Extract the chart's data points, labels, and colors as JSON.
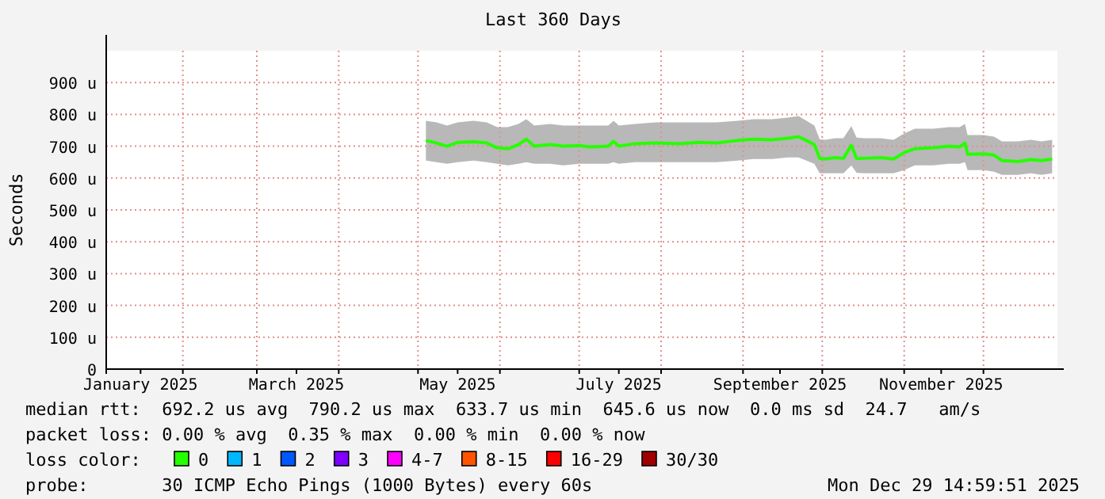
{
  "chart_data": {
    "type": "line",
    "title": "Last 360 Days",
    "ylabel": "Seconds",
    "x": [
      "2025-05-04",
      "2025-05-08",
      "2025-05-12",
      "2025-05-16",
      "2025-05-22",
      "2025-05-27",
      "2025-05-31",
      "2025-06-04",
      "2025-06-08",
      "2025-06-11",
      "2025-06-14",
      "2025-06-20",
      "2025-06-25",
      "2025-07-01",
      "2025-07-05",
      "2025-07-12",
      "2025-07-14",
      "2025-07-16",
      "2025-07-22",
      "2025-07-30",
      "2025-08-08",
      "2025-08-15",
      "2025-08-22",
      "2025-08-30",
      "2025-09-05",
      "2025-09-12",
      "2025-09-18",
      "2025-09-22",
      "2025-09-25",
      "2025-09-28",
      "2025-09-30",
      "2025-10-02",
      "2025-10-06",
      "2025-10-09",
      "2025-10-12",
      "2025-10-14",
      "2025-10-17",
      "2025-10-23",
      "2025-10-28",
      "2025-11-01",
      "2025-11-05",
      "2025-11-12",
      "2025-11-18",
      "2025-11-22",
      "2025-11-24",
      "2025-11-25",
      "2025-12-01",
      "2025-12-05",
      "2025-12-08",
      "2025-12-14",
      "2025-12-19",
      "2025-12-23",
      "2025-12-27"
    ],
    "series": [
      {
        "name": "0",
        "color": "#26ff00",
        "values": [
          718,
          710,
          700,
          712,
          714,
          710,
          695,
          692,
          705,
          722,
          700,
          705,
          700,
          702,
          698,
          700,
          715,
          700,
          708,
          710,
          708,
          712,
          710,
          718,
          722,
          720,
          725,
          730,
          718,
          705,
          662,
          660,
          664,
          662,
          703,
          662,
          662,
          664,
          660,
          680,
          692,
          695,
          700,
          698,
          710,
          675,
          676,
          672,
          655,
          652,
          658,
          655,
          660
        ],
        "lower": [
          655,
          650,
          645,
          650,
          655,
          650,
          645,
          640,
          645,
          650,
          645,
          645,
          640,
          645,
          645,
          645,
          650,
          645,
          650,
          650,
          650,
          650,
          650,
          655,
          660,
          660,
          665,
          665,
          655,
          645,
          615,
          615,
          615,
          615,
          640,
          616,
          615,
          615,
          615,
          625,
          640,
          640,
          645,
          645,
          650,
          625,
          625,
          620,
          610,
          610,
          615,
          610,
          615
        ],
        "upper": [
          780,
          775,
          765,
          775,
          780,
          775,
          760,
          760,
          770,
          785,
          765,
          770,
          765,
          765,
          765,
          765,
          780,
          765,
          770,
          775,
          775,
          775,
          775,
          780,
          785,
          785,
          790,
          795,
          780,
          765,
          722,
          720,
          725,
          725,
          763,
          727,
          725,
          725,
          720,
          740,
          755,
          755,
          760,
          760,
          770,
          735,
          735,
          730,
          715,
          715,
          720,
          715,
          720
        ]
      },
      {
        "name": "1",
        "color": "#00b8ff",
        "values": [
          null,
          null,
          null,
          null,
          null,
          null,
          null,
          null,
          null,
          null,
          null,
          null,
          null,
          null,
          null,
          null,
          null,
          null,
          null,
          null,
          null,
          null,
          null,
          null,
          null,
          null,
          null,
          null,
          null,
          null,
          null,
          null,
          null,
          null,
          null,
          null,
          null,
          null,
          null,
          null,
          null,
          null,
          null,
          null,
          null,
          null,
          null,
          null,
          null,
          null,
          null,
          null,
          null
        ]
      },
      {
        "name": "2",
        "color": "#0059ff",
        "values": [
          null,
          null,
          null,
          null,
          null,
          null,
          null,
          null,
          null,
          null,
          null,
          null,
          null,
          null,
          null,
          null,
          null,
          null,
          null,
          null,
          null,
          null,
          null,
          null,
          null,
          null,
          null,
          null,
          null,
          null,
          null,
          null,
          null,
          null,
          null,
          null,
          null,
          null,
          null,
          null,
          null,
          null,
          null,
          null,
          null,
          null,
          null,
          null,
          null,
          null,
          null,
          null,
          null
        ]
      },
      {
        "name": "3",
        "color": "#7e00ff",
        "values": [
          null,
          null,
          null,
          null,
          null,
          null,
          null,
          null,
          null,
          null,
          null,
          null,
          null,
          null,
          null,
          null,
          null,
          null,
          null,
          null,
          null,
          null,
          null,
          null,
          null,
          null,
          null,
          null,
          null,
          null,
          null,
          null,
          null,
          null,
          null,
          null,
          null,
          null,
          null,
          null,
          null,
          null,
          null,
          null,
          null,
          null,
          null,
          null,
          null,
          null,
          null,
          null,
          null
        ]
      },
      {
        "name": "4-7",
        "color": "#ff00ff",
        "values": [
          null,
          null,
          null,
          null,
          null,
          null,
          null,
          null,
          null,
          null,
          null,
          null,
          null,
          null,
          null,
          null,
          null,
          null,
          null,
          null,
          null,
          null,
          null,
          null,
          null,
          null,
          null,
          null,
          null,
          null,
          null,
          null,
          null,
          null,
          null,
          null,
          null,
          null,
          null,
          null,
          null,
          null,
          null,
          null,
          null,
          null,
          null,
          null,
          null,
          null,
          null,
          null,
          null
        ]
      },
      {
        "name": "8-15",
        "color": "#ff5500",
        "values": [
          null,
          null,
          null,
          null,
          null,
          null,
          null,
          null,
          null,
          null,
          null,
          null,
          null,
          null,
          null,
          null,
          null,
          null,
          null,
          null,
          null,
          null,
          null,
          null,
          null,
          null,
          null,
          null,
          null,
          null,
          null,
          null,
          null,
          null,
          null,
          null,
          null,
          null,
          null,
          null,
          null,
          null,
          null,
          null,
          null,
          null,
          null,
          null,
          null,
          null,
          null,
          null,
          null
        ]
      },
      {
        "name": "16-29",
        "color": "#ff0000",
        "values": [
          null,
          null,
          null,
          null,
          null,
          null,
          null,
          null,
          null,
          null,
          null,
          null,
          null,
          null,
          null,
          null,
          null,
          null,
          null,
          null,
          null,
          null,
          null,
          null,
          null,
          null,
          null,
          null,
          null,
          null,
          null,
          null,
          null,
          null,
          null,
          null,
          null,
          null,
          null,
          null,
          null,
          null,
          null,
          null,
          null,
          null,
          null,
          null,
          null,
          null,
          null,
          null,
          null
        ]
      },
      {
        "name": "30/30",
        "color": "#a10000",
        "values": [
          null,
          null,
          null,
          null,
          null,
          null,
          null,
          null,
          null,
          null,
          null,
          null,
          null,
          null,
          null,
          null,
          null,
          null,
          null,
          null,
          null,
          null,
          null,
          null,
          null,
          null,
          null,
          null,
          null,
          null,
          null,
          null,
          null,
          null,
          null,
          null,
          null,
          null,
          null,
          null,
          null,
          null,
          null,
          null,
          null,
          null,
          null,
          null,
          null,
          null,
          null,
          null,
          null
        ]
      }
    ],
    "legend_title": "loss color:",
    "legend": "bottom",
    "xlim": [
      "2025-01-03",
      "2025-12-29"
    ],
    "xticks": [
      {
        "value": "2025-01-16",
        "label": "January 2025"
      },
      {
        "value": "2025-02-01",
        "label": null
      },
      {
        "value": "2025-03-01",
        "label": null
      },
      {
        "value": "2025-03-16",
        "label": "March 2025"
      },
      {
        "value": "2025-04-01",
        "label": null
      },
      {
        "value": "2025-05-01",
        "label": null
      },
      {
        "value": "2025-05-16",
        "label": "May 2025"
      },
      {
        "value": "2025-06-01",
        "label": null
      },
      {
        "value": "2025-07-01",
        "label": null
      },
      {
        "value": "2025-07-16",
        "label": "July 2025"
      },
      {
        "value": "2025-08-01",
        "label": null
      },
      {
        "value": "2025-09-01",
        "label": null
      },
      {
        "value": "2025-09-15",
        "label": "September 2025"
      },
      {
        "value": "2025-10-01",
        "label": null
      },
      {
        "value": "2025-11-01",
        "label": null
      },
      {
        "value": "2025-11-15",
        "label": "November 2025"
      },
      {
        "value": "2025-12-01",
        "label": null
      }
    ],
    "ylim": [
      0,
      1000
    ],
    "yticks": [
      {
        "value": 0,
        "label": "0"
      },
      {
        "value": 100,
        "label": "100 u"
      },
      {
        "value": 200,
        "label": "200 u"
      },
      {
        "value": 300,
        "label": "300 u"
      },
      {
        "value": 400,
        "label": "400 u"
      },
      {
        "value": 500,
        "label": "500 u"
      },
      {
        "value": 600,
        "label": "600 u"
      },
      {
        "value": 700,
        "label": "700 u"
      },
      {
        "value": 800,
        "label": "800 u"
      },
      {
        "value": 900,
        "label": "900 u"
      }
    ],
    "grid": true,
    "line_style": "solid",
    "marker": "none",
    "annotations": [
      "median rtt:  692.2 us avg  790.2 us max  633.7 us min  645.6 us now  0.0 ms sd  24.7   am/s",
      "packet loss: 0.00 % avg  0.35 % max  0.00 % min  0.00 % now",
      "probe:       30 ICMP Echo Pings (1000 Bytes) every 60s",
      "Mon Dec 29 14:59:51 2025"
    ]
  }
}
